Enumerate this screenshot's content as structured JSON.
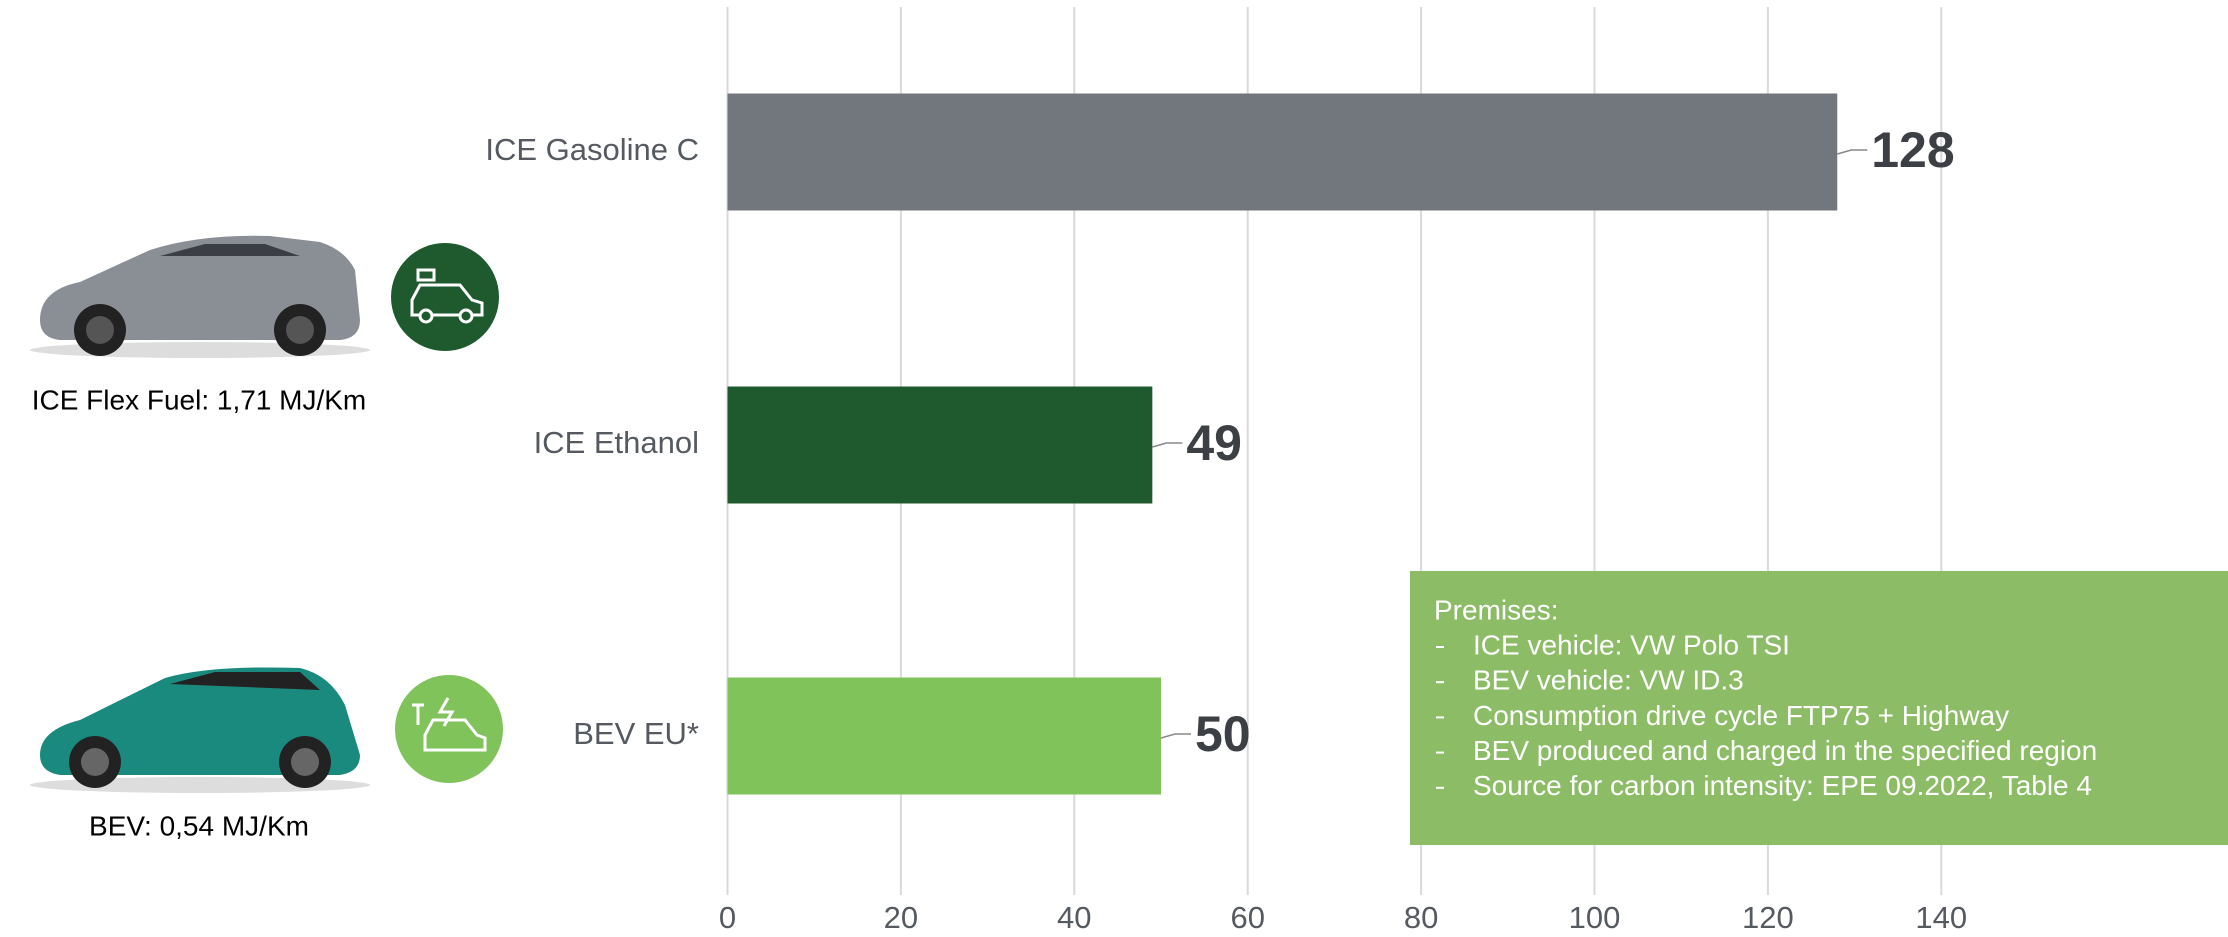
{
  "chart_data": {
    "type": "bar",
    "orientation": "horizontal",
    "categories": [
      "ICE Gasoline C",
      "ICE Ethanol",
      "BEV EU*"
    ],
    "values": [
      128,
      49,
      50
    ],
    "colors": [
      "#72767d",
      "#1e5a2e",
      "#80c35b"
    ],
    "xlim": [
      0,
      173
    ],
    "xticks": [
      0,
      20,
      40,
      60,
      80,
      100,
      120,
      140
    ],
    "grid": true,
    "annotations": [
      "ICE Flex Fuel: 1,71 MJ/Km",
      "BEV: 0,54 MJ/Km"
    ],
    "premises": {
      "title": "Premises:",
      "items": [
        "ICE vehicle: VW Polo TSI",
        "BEV vehicle: VW ID.3",
        "Consumption drive cycle FTP75 + Highway",
        "BEV produced and charged in the specified region",
        "Source for carbon intensity: EPE 09.2022, Table 4"
      ]
    }
  }
}
